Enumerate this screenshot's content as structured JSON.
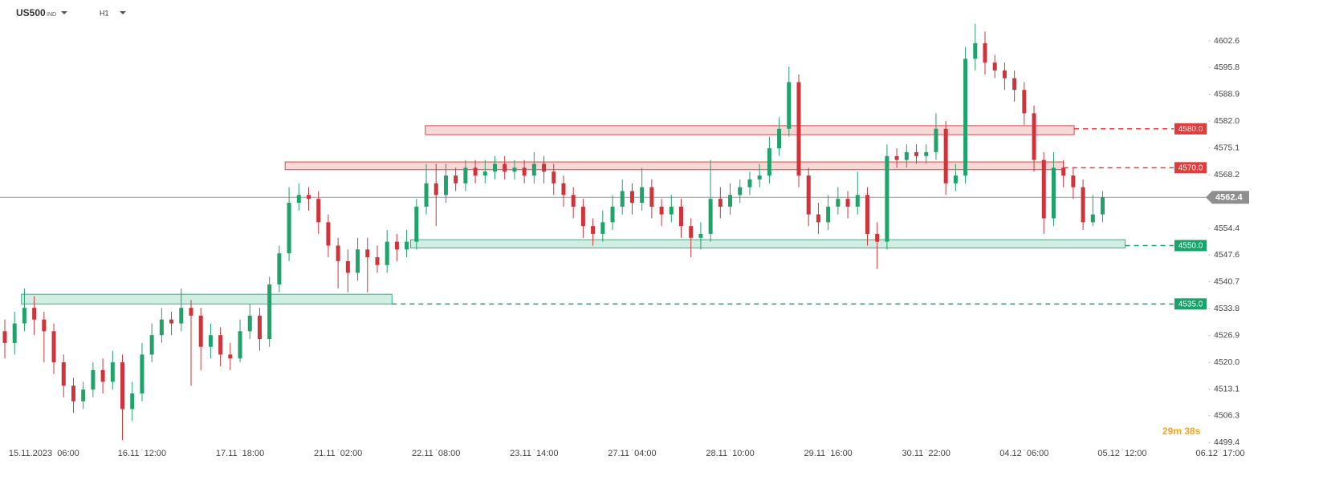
{
  "header": {
    "symbol": "US500",
    "market": "IND",
    "timeframe": "H1"
  },
  "chart_data": {
    "type": "candlestick",
    "categories": [
      null,
      null,
      null,
      null,
      "15.11.2023  06:00",
      null,
      null,
      null,
      null,
      null,
      null,
      null,
      null,
      null,
      "16.11  12:00",
      null,
      null,
      null,
      null,
      null,
      null,
      null,
      null,
      null,
      "17.11  18:00",
      null,
      null,
      null,
      null,
      null,
      null,
      null,
      null,
      null,
      "21.11  02:00",
      null,
      null,
      null,
      null,
      null,
      null,
      null,
      null,
      null,
      "22.11  08:00",
      null,
      null,
      null,
      null,
      null,
      null,
      null,
      null,
      null,
      "23.11  14:00",
      null,
      null,
      null,
      null,
      null,
      null,
      null,
      null,
      null,
      "27.11  04:00",
      null,
      null,
      null,
      null,
      null,
      null,
      null,
      null,
      null,
      "28.11  10:00",
      null,
      null,
      null,
      null,
      null,
      null,
      null,
      null,
      null,
      "29.11  16:00",
      null,
      null,
      null,
      null,
      null,
      null,
      null,
      null,
      null,
      "30.11  22:00",
      null,
      null,
      null,
      null,
      null,
      null,
      null,
      null,
      null,
      "04.12  06:00",
      null,
      null,
      null,
      null,
      null,
      null,
      null,
      null,
      null,
      "05.12  12:00",
      null,
      null,
      null,
      null,
      null,
      null,
      null,
      null,
      null,
      "06.12  17:00"
    ],
    "open": [
      4528,
      4525,
      4530,
      4534,
      4531,
      4528,
      4520,
      4514,
      4510,
      4513,
      4518,
      4515,
      4520,
      4508,
      4512,
      4522,
      4527,
      4531,
      4530,
      4534,
      4532,
      4524,
      4527,
      4522,
      4521,
      4528,
      4532,
      4526,
      4540,
      4548,
      4561,
      4563,
      4562,
      4556,
      4550,
      4546,
      4543,
      4549,
      4547,
      4545,
      4551,
      4549,
      4551,
      4560,
      4566,
      4563,
      4568,
      4566,
      4570,
      4568,
      4569,
      4571,
      4569,
      4570,
      4568,
      4571,
      4569,
      4566,
      4563,
      4560,
      4555,
      4553,
      4556,
      4560,
      4564,
      4561,
      4565,
      4560,
      4558,
      4560,
      4555,
      4552,
      4553,
      4562,
      4560,
      4563,
      4565,
      4567,
      4568,
      4575,
      4580,
      4592,
      4568,
      4558,
      4556,
      4560,
      4562,
      4560,
      4563,
      4553,
      4551,
      4573,
      4572,
      4574,
      4573,
      4574,
      4580,
      4566,
      4568,
      4598,
      4602,
      4597,
      4595,
      4593,
      4590,
      4584,
      4572,
      4557,
      4570,
      4568,
      4565,
      4556,
      4558,
      null,
      null,
      null,
      null,
      null,
      null,
      null,
      null,
      null,
      null,
      null,
      null
    ],
    "high": [
      4531,
      4533,
      4539,
      4537,
      4533,
      4530,
      4522,
      4516,
      4515,
      4520,
      4521,
      4523,
      4522,
      4515,
      4525,
      4530,
      4534,
      4533,
      4539,
      4536,
      4534,
      4530,
      4529,
      4525,
      4531,
      4535,
      4534,
      4542,
      4550,
      4565,
      4566,
      4565,
      4564,
      4558,
      4552,
      4549,
      4552,
      4552,
      4550,
      4554,
      4553,
      4554,
      4562,
      4571,
      4571,
      4571,
      4570,
      4572,
      4572,
      4572,
      4573,
      4573,
      4572,
      4572,
      4574,
      4573,
      4571,
      4568,
      4565,
      4562,
      4557,
      4559,
      4563,
      4567,
      4566,
      4570,
      4567,
      4562,
      4563,
      4562,
      4557,
      4556,
      4572,
      4565,
      4566,
      4567,
      4569,
      4571,
      4578,
      4583,
      4596,
      4594,
      4570,
      4561,
      4563,
      4565,
      4564,
      4569,
      4565,
      4556,
      4576,
      4575,
      4576,
      4576,
      4576,
      4584,
      4582,
      4571,
      4601,
      4607,
      4605,
      4599,
      4597,
      4595,
      4592,
      4586,
      4574,
      4574,
      4572,
      4570,
      4567,
      4563,
      4564,
      null,
      null,
      null,
      null,
      null,
      null,
      null,
      null,
      null,
      null,
      null,
      null
    ],
    "low": [
      4521,
      4522,
      4528,
      4527,
      4520,
      4517,
      4511,
      4507,
      4508,
      4511,
      4512,
      4513,
      4500,
      4505,
      4510,
      4520,
      4525,
      4527,
      4528,
      4514,
      4518,
      4521,
      4519,
      4518,
      4520,
      4526,
      4523,
      4524,
      4538,
      4546,
      4559,
      4559,
      4553,
      4547,
      4539,
      4538,
      4541,
      4538,
      4543,
      4543,
      4546,
      4547,
      4549,
      4558,
      4555,
      4561,
      4564,
      4564,
      4566,
      4566,
      4567,
      4567,
      4567,
      4566,
      4566,
      4566,
      4563,
      4560,
      4557,
      4552,
      4550,
      4551,
      4554,
      4558,
      4558,
      4559,
      4557,
      4555,
      4556,
      4552,
      4547,
      4549,
      4551,
      4557,
      4558,
      4561,
      4563,
      4565,
      4566,
      4573,
      4578,
      4565,
      4555,
      4553,
      4554,
      4558,
      4557,
      4558,
      4550,
      4544,
      4549,
      4570,
      4570,
      4571,
      4571,
      4572,
      4563,
      4564,
      4566,
      4595,
      4594,
      4593,
      4590,
      4587,
      4581,
      4569,
      4553,
      4555,
      4565,
      4562,
      4554,
      4555,
      4556,
      null,
      null,
      null,
      null,
      null,
      null,
      null,
      null,
      null,
      null,
      null,
      null
    ],
    "close": [
      4525,
      4530,
      4534,
      4531,
      4528,
      4520,
      4514,
      4510,
      4513,
      4518,
      4515,
      4520,
      4508,
      4512,
      4522,
      4527,
      4531,
      4530,
      4534,
      4532,
      4524,
      4527,
      4522,
      4521,
      4528,
      4532,
      4526,
      4540,
      4548,
      4561,
      4563,
      4562,
      4556,
      4550,
      4546,
      4543,
      4549,
      4547,
      4545,
      4551,
      4549,
      4551,
      4560,
      4566,
      4563,
      4568,
      4566,
      4570,
      4568,
      4569,
      4571,
      4569,
      4570,
      4568,
      4571,
      4569,
      4566,
      4563,
      4560,
      4555,
      4553,
      4556,
      4560,
      4564,
      4561,
      4565,
      4560,
      4558,
      4560,
      4555,
      4552,
      4553,
      4562,
      4560,
      4563,
      4565,
      4567,
      4568,
      4575,
      4580,
      4592,
      4568,
      4558,
      4556,
      4560,
      4562,
      4560,
      4563,
      4553,
      4551,
      4573,
      4572,
      4574,
      4573,
      4574,
      4580,
      4566,
      4568,
      4598,
      4602,
      4597,
      4595,
      4593,
      4590,
      4584,
      4572,
      4557,
      4570,
      4568,
      4565,
      4556,
      4558,
      4562.4,
      null,
      null,
      null,
      null,
      null,
      null,
      null,
      null,
      null,
      null,
      null,
      null
    ],
    "up_color": "#1fa36b",
    "down_color": "#d1333b",
    "ylim": [
      4497.8,
      4613.1
    ],
    "yticks": [
      4499.4,
      4506.3,
      4513.1,
      {
        "value": 4520,
        "label": "4520.0"
      },
      4526.9,
      4533.8,
      4540.7,
      4547.6,
      4554.4,
      4568.2,
      4575.1,
      {
        "value": 4582,
        "label": "4582.0"
      },
      4588.9,
      4595.8,
      4602.6
    ],
    "levels": [
      {
        "value": 4580,
        "label": "4580.0",
        "color": "#e03c3c"
      },
      {
        "value": 4570,
        "label": "4570.0",
        "color": "#e03c3c"
      },
      {
        "value": 4550,
        "label": "4550.0",
        "color": "#18a36b"
      },
      {
        "value": 4535,
        "label": "4535.0",
        "color": "#18a36b"
      }
    ],
    "zones": [
      {
        "from": 42.9,
        "to": 109.1,
        "low": 4578.5,
        "high": 4580.8,
        "color": "#e04848"
      },
      {
        "from": 28.6,
        "to": 108,
        "low": 4569.5,
        "high": 4571.5,
        "color": "#e04848"
      },
      {
        "from": 41.4,
        "to": 114.3,
        "low": 4549.4,
        "high": 4551.5,
        "color": "#28b67e"
      },
      {
        "from": 1.7,
        "to": 39.5,
        "low": 4535,
        "high": 4537.5,
        "color": "#28b67e"
      }
    ],
    "current_price": 4562.4,
    "countdown": "29m 38s"
  }
}
